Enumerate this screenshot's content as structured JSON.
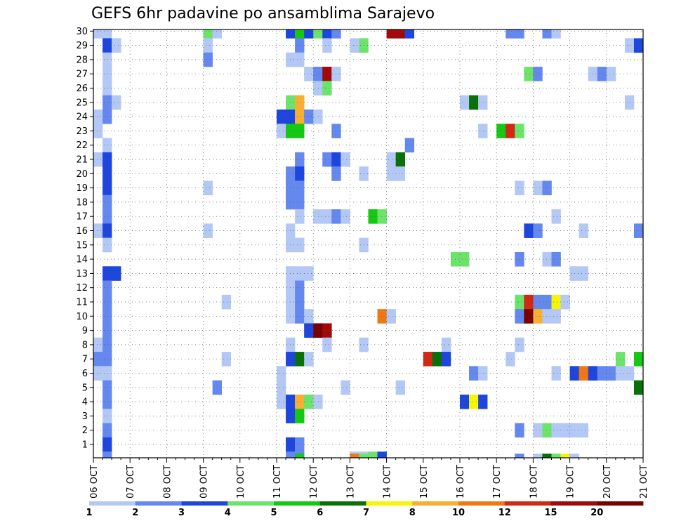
{
  "chart_data": {
    "type": "heatmap",
    "title": "GEFS 6hr padavine po ansamblima Sarajevo",
    "xlabel": "",
    "ylabel": "",
    "x_ticks": [
      "06 OCT",
      "07 OCT",
      "08 OCT",
      "09 OCT",
      "10 OCT",
      "11 OCT",
      "12 OCT",
      "13 OCT",
      "14 OCT",
      "15 OCT",
      "16 OCT",
      "17 OCT",
      "18 OCT",
      "19 OCT",
      "20 OCT",
      "21 OCT"
    ],
    "y_ticks": [
      1,
      2,
      3,
      4,
      5,
      6,
      7,
      8,
      9,
      10,
      11,
      12,
      13,
      14,
      15,
      16,
      17,
      18,
      19,
      20,
      21,
      22,
      23,
      24,
      25,
      26,
      27,
      28,
      29,
      30
    ],
    "time_steps": 60,
    "members": 30,
    "grid": true,
    "colorbar": {
      "position": "bottom",
      "labels": [
        "1",
        "2",
        "3",
        "4",
        "5",
        "6",
        "7",
        "8",
        "10",
        "12",
        "15",
        "20"
      ],
      "colors": [
        "#b4c8f5",
        "#6488ee",
        "#1e46dc",
        "#6ce46c",
        "#14c814",
        "#0a700a",
        "#f5f50a",
        "#f5af32",
        "#f07814",
        "#d22814",
        "#a00a0a",
        "#780000"
      ]
    },
    "cells": [
      [
        30,
        0,
        0
      ],
      [
        30,
        1,
        0
      ],
      [
        30,
        12,
        3
      ],
      [
        30,
        13,
        0
      ],
      [
        30,
        21,
        2
      ],
      [
        30,
        22,
        4
      ],
      [
        30,
        23,
        2
      ],
      [
        30,
        24,
        3
      ],
      [
        30,
        25,
        2
      ],
      [
        30,
        26,
        1
      ],
      [
        30,
        32,
        10
      ],
      [
        30,
        33,
        10
      ],
      [
        30,
        34,
        2
      ],
      [
        30,
        45,
        1
      ],
      [
        30,
        46,
        1
      ],
      [
        30,
        49,
        1
      ],
      [
        30,
        50,
        0
      ],
      [
        29,
        1,
        2
      ],
      [
        29,
        2,
        0
      ],
      [
        29,
        12,
        0
      ],
      [
        29,
        22,
        1
      ],
      [
        29,
        25,
        0
      ],
      [
        29,
        28,
        0
      ],
      [
        29,
        29,
        3
      ],
      [
        29,
        58,
        0
      ],
      [
        29,
        59,
        2
      ],
      [
        28,
        1,
        0
      ],
      [
        28,
        12,
        1
      ],
      [
        28,
        21,
        0
      ],
      [
        28,
        22,
        0
      ],
      [
        27,
        1,
        0
      ],
      [
        27,
        23,
        0
      ],
      [
        27,
        24,
        1
      ],
      [
        27,
        25,
        10
      ],
      [
        27,
        26,
        0
      ],
      [
        27,
        47,
        3
      ],
      [
        27,
        48,
        1
      ],
      [
        27,
        54,
        0
      ],
      [
        27,
        55,
        1
      ],
      [
        27,
        56,
        0
      ],
      [
        26,
        1,
        0
      ],
      [
        26,
        24,
        0
      ],
      [
        26,
        25,
        3
      ],
      [
        25,
        1,
        1
      ],
      [
        25,
        2,
        0
      ],
      [
        25,
        21,
        3
      ],
      [
        25,
        22,
        7
      ],
      [
        25,
        40,
        0
      ],
      [
        25,
        41,
        5
      ],
      [
        25,
        42,
        0
      ],
      [
        25,
        58,
        0
      ],
      [
        24,
        0,
        0
      ],
      [
        24,
        1,
        1
      ],
      [
        24,
        20,
        2
      ],
      [
        24,
        21,
        2
      ],
      [
        24,
        22,
        7
      ],
      [
        24,
        23,
        1
      ],
      [
        24,
        24,
        0
      ],
      [
        23,
        0,
        0
      ],
      [
        23,
        20,
        0
      ],
      [
        23,
        21,
        4
      ],
      [
        23,
        22,
        4
      ],
      [
        23,
        26,
        1
      ],
      [
        23,
        42,
        0
      ],
      [
        23,
        44,
        4
      ],
      [
        23,
        45,
        9
      ],
      [
        23,
        46,
        3
      ],
      [
        22,
        1,
        0
      ],
      [
        22,
        34,
        1
      ],
      [
        21,
        0,
        0
      ],
      [
        21,
        1,
        2
      ],
      [
        21,
        22,
        1
      ],
      [
        21,
        25,
        1
      ],
      [
        21,
        26,
        2
      ],
      [
        21,
        27,
        0
      ],
      [
        21,
        32,
        0
      ],
      [
        21,
        33,
        5
      ],
      [
        20,
        1,
        2
      ],
      [
        20,
        21,
        1
      ],
      [
        20,
        22,
        2
      ],
      [
        20,
        26,
        1
      ],
      [
        20,
        29,
        0
      ],
      [
        20,
        32,
        0
      ],
      [
        20,
        33,
        0
      ],
      [
        19,
        1,
        2
      ],
      [
        19,
        12,
        0
      ],
      [
        19,
        21,
        1
      ],
      [
        19,
        22,
        1
      ],
      [
        19,
        46,
        0
      ],
      [
        19,
        48,
        0
      ],
      [
        19,
        49,
        1
      ],
      [
        18,
        1,
        1
      ],
      [
        18,
        21,
        1
      ],
      [
        18,
        22,
        1
      ],
      [
        17,
        1,
        1
      ],
      [
        17,
        22,
        0
      ],
      [
        17,
        24,
        0
      ],
      [
        17,
        25,
        0
      ],
      [
        17,
        26,
        1
      ],
      [
        17,
        27,
        0
      ],
      [
        17,
        30,
        4
      ],
      [
        17,
        31,
        3
      ],
      [
        17,
        50,
        0
      ],
      [
        16,
        0,
        0
      ],
      [
        16,
        1,
        2
      ],
      [
        16,
        12,
        0
      ],
      [
        16,
        21,
        0
      ],
      [
        16,
        47,
        2
      ],
      [
        16,
        48,
        1
      ],
      [
        16,
        53,
        0
      ],
      [
        16,
        59,
        1
      ],
      [
        15,
        1,
        0
      ],
      [
        15,
        21,
        0
      ],
      [
        15,
        22,
        0
      ],
      [
        15,
        29,
        0
      ],
      [
        14,
        39,
        3
      ],
      [
        14,
        40,
        3
      ],
      [
        14,
        46,
        1
      ],
      [
        14,
        49,
        0
      ],
      [
        14,
        50,
        1
      ],
      [
        13,
        1,
        2
      ],
      [
        13,
        2,
        2
      ],
      [
        13,
        21,
        0
      ],
      [
        13,
        22,
        0
      ],
      [
        13,
        23,
        0
      ],
      [
        13,
        52,
        0
      ],
      [
        13,
        53,
        0
      ],
      [
        12,
        1,
        1
      ],
      [
        12,
        21,
        0
      ],
      [
        12,
        22,
        1
      ],
      [
        11,
        1,
        1
      ],
      [
        11,
        14,
        0
      ],
      [
        11,
        21,
        0
      ],
      [
        11,
        22,
        1
      ],
      [
        11,
        46,
        3
      ],
      [
        11,
        47,
        9
      ],
      [
        11,
        48,
        1
      ],
      [
        11,
        49,
        1
      ],
      [
        11,
        50,
        6
      ],
      [
        11,
        51,
        0
      ],
      [
        10,
        1,
        1
      ],
      [
        10,
        21,
        0
      ],
      [
        10,
        22,
        1
      ],
      [
        10,
        23,
        0
      ],
      [
        10,
        31,
        8
      ],
      [
        10,
        32,
        0
      ],
      [
        10,
        46,
        1
      ],
      [
        10,
        47,
        11
      ],
      [
        10,
        48,
        7
      ],
      [
        10,
        49,
        0
      ],
      [
        10,
        50,
        0
      ],
      [
        9,
        1,
        1
      ],
      [
        9,
        23,
        2
      ],
      [
        9,
        24,
        11
      ],
      [
        9,
        25,
        10
      ],
      [
        8,
        0,
        0
      ],
      [
        8,
        1,
        1
      ],
      [
        8,
        21,
        0
      ],
      [
        8,
        25,
        0
      ],
      [
        8,
        29,
        0
      ],
      [
        8,
        38,
        0
      ],
      [
        8,
        46,
        0
      ],
      [
        7,
        0,
        1
      ],
      [
        7,
        1,
        1
      ],
      [
        7,
        14,
        0
      ],
      [
        7,
        21,
        2
      ],
      [
        7,
        22,
        5
      ],
      [
        7,
        23,
        0
      ],
      [
        7,
        36,
        9
      ],
      [
        7,
        37,
        5
      ],
      [
        7,
        38,
        2
      ],
      [
        7,
        45,
        0
      ],
      [
        7,
        57,
        3
      ],
      [
        7,
        59,
        4
      ],
      [
        6,
        0,
        0
      ],
      [
        6,
        1,
        0
      ],
      [
        6,
        20,
        0
      ],
      [
        6,
        41,
        1
      ],
      [
        6,
        42,
        0
      ],
      [
        6,
        50,
        0
      ],
      [
        6,
        52,
        2
      ],
      [
        6,
        53,
        8
      ],
      [
        6,
        54,
        2
      ],
      [
        6,
        55,
        1
      ],
      [
        6,
        56,
        1
      ],
      [
        6,
        57,
        0
      ],
      [
        6,
        58,
        0
      ],
      [
        5,
        1,
        1
      ],
      [
        5,
        13,
        1
      ],
      [
        5,
        20,
        0
      ],
      [
        5,
        27,
        0
      ],
      [
        5,
        33,
        0
      ],
      [
        5,
        59,
        5
      ],
      [
        4,
        1,
        1
      ],
      [
        4,
        20,
        0
      ],
      [
        4,
        21,
        2
      ],
      [
        4,
        22,
        7
      ],
      [
        4,
        23,
        3
      ],
      [
        4,
        24,
        0
      ],
      [
        4,
        40,
        2
      ],
      [
        4,
        41,
        6
      ],
      [
        4,
        42,
        2
      ],
      [
        3,
        1,
        0
      ],
      [
        3,
        21,
        2
      ],
      [
        3,
        22,
        4
      ],
      [
        2,
        1,
        1
      ],
      [
        2,
        46,
        1
      ],
      [
        2,
        48,
        0
      ],
      [
        2,
        49,
        3
      ],
      [
        2,
        50,
        0
      ],
      [
        2,
        51,
        0
      ],
      [
        2,
        52,
        0
      ],
      [
        2,
        53,
        0
      ],
      [
        1,
        1,
        2
      ],
      [
        1,
        21,
        2
      ],
      [
        1,
        22,
        1
      ],
      [
        0,
        1,
        1
      ],
      [
        0,
        21,
        1
      ],
      [
        0,
        22,
        1
      ],
      [
        0,
        28,
        0
      ],
      [
        0,
        29,
        0
      ],
      [
        0,
        30,
        3
      ],
      [
        0,
        31,
        2
      ]
    ],
    "bottom_strip": [
      [
        22,
        4
      ],
      [
        28,
        8
      ],
      [
        29,
        3
      ],
      [
        46,
        1
      ],
      [
        48,
        0
      ],
      [
        49,
        5
      ],
      [
        50,
        3
      ],
      [
        51,
        6
      ],
      [
        52,
        0
      ]
    ]
  }
}
